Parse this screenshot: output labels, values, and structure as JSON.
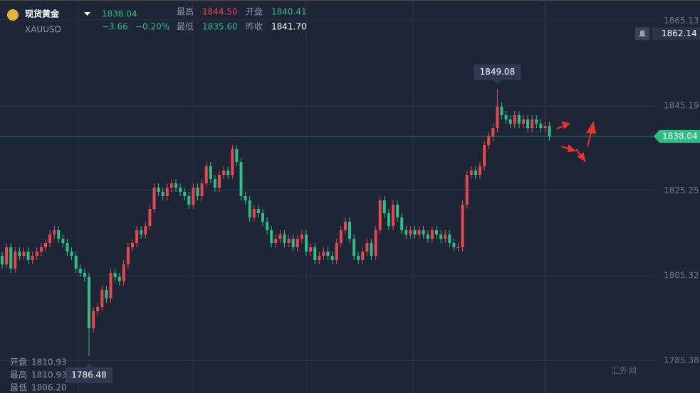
{
  "header": {
    "name": "现货黄金",
    "symbol": "XAUUSD",
    "price": "1838.04",
    "change": "−3.66",
    "change_pct": "−0.20%",
    "stats": [
      {
        "label": "最高",
        "value": "1844.50"
      },
      {
        "label": "开盘",
        "value": "1840.41"
      },
      {
        "label": "最低",
        "value": "1835.60"
      },
      {
        "label": "昨收",
        "value": "1841.70"
      }
    ]
  },
  "crosshair_info": [
    {
      "label": "开盘",
      "value": "1810.93"
    },
    {
      "label": "最高",
      "value": "1810.93"
    },
    {
      "label": "最低",
      "value": "1806.20"
    }
  ],
  "watermark": "汇外网",
  "chart_data": {
    "type": "candlestick",
    "up_color": "#e5484d",
    "down_color": "#2dbd85",
    "ylim": [
      1777.8,
      1870.04
    ],
    "yticks": [
      1785.38,
      1805.32,
      1825.25,
      1845.19,
      1865.13
    ],
    "grid": true,
    "alert_price": 1862.14,
    "open": [
      1810,
      1808,
      1812,
      1807,
      1811,
      1810,
      1811,
      1809,
      1810,
      1811,
      1812,
      1813,
      1815,
      1816,
      1814,
      1813,
      1811,
      1810,
      1807,
      1806,
      1805,
      1793,
      1797,
      1798,
      1802,
      1800,
      1806,
      1805,
      1804,
      1808,
      1812,
      1813,
      1816,
      1815,
      1817,
      1821,
      1826,
      1825,
      1824,
      1826,
      1827,
      1826,
      1825,
      1824,
      1822,
      1826,
      1824,
      1827,
      1831,
      1828,
      1826,
      1829,
      1830,
      1829,
      1835,
      1832,
      1824,
      1823,
      1819,
      1821,
      1820,
      1818,
      1816,
      1813,
      1814,
      1815,
      1813,
      1814,
      1812,
      1814,
      1815,
      1811,
      1812,
      1809,
      1810,
      1811,
      1810,
      1809,
      1813,
      1816,
      1818,
      1814,
      1810,
      1809,
      1811,
      1813,
      1810,
      1816,
      1823,
      1820,
      1817,
      1822,
      1819,
      1816,
      1815,
      1816,
      1815,
      1816,
      1815,
      1814,
      1816,
      1815,
      1814,
      1815,
      1813,
      1812,
      1812,
      1822,
      1829,
      1830,
      1829,
      1831,
      1836,
      1838,
      1840,
      1845,
      1843,
      1842,
      1841,
      1843,
      1841,
      1842,
      1840,
      1842,
      1841,
      1840,
      1840.5
    ],
    "high": [
      1811,
      1813,
      1813,
      1812,
      1812,
      1812,
      1812,
      1811,
      1812,
      1813,
      1814,
      1816,
      1817,
      1817,
      1815,
      1814,
      1812,
      1811,
      1808,
      1807,
      1806,
      1798,
      1799,
      1803,
      1803,
      1807,
      1807,
      1806,
      1809,
      1813,
      1814,
      1817,
      1817,
      1818,
      1822,
      1827,
      1827,
      1826,
      1827,
      1828,
      1828,
      1827,
      1826,
      1825,
      1827,
      1827,
      1828,
      1832,
      1832,
      1829,
      1830,
      1831,
      1831,
      1836,
      1836,
      1833,
      1825,
      1824,
      1822,
      1822,
      1821,
      1819,
      1817,
      1815,
      1816,
      1816,
      1815,
      1815,
      1815,
      1816,
      1816,
      1813,
      1813,
      1811,
      1812,
      1812,
      1811,
      1814,
      1817,
      1819,
      1819,
      1815,
      1811,
      1812,
      1814,
      1814,
      1817,
      1824,
      1824,
      1821,
      1823,
      1823,
      1820,
      1817,
      1817,
      1817,
      1817,
      1817,
      1816,
      1817,
      1817,
      1816,
      1816,
      1816,
      1814,
      1813,
      1823,
      1830,
      1831,
      1831,
      1832,
      1837,
      1839,
      1841,
      1849.08,
      1846,
      1844,
      1843,
      1844,
      1844,
      1843,
      1843,
      1843,
      1843,
      1842,
      1841.5,
      1841.5
    ],
    "low": [
      1807,
      1807,
      1806,
      1806,
      1809,
      1809,
      1808,
      1808,
      1809,
      1810,
      1811,
      1812,
      1814,
      1813,
      1812,
      1810,
      1809,
      1806,
      1805,
      1804,
      1786.48,
      1792,
      1796,
      1797,
      1799,
      1799,
      1804,
      1803,
      1803,
      1807,
      1811,
      1812,
      1814,
      1814,
      1816,
      1820,
      1824,
      1823,
      1823,
      1825,
      1825,
      1824,
      1823,
      1821,
      1821,
      1823,
      1823,
      1826,
      1827,
      1825,
      1825,
      1828,
      1828,
      1828,
      1831,
      1823,
      1822,
      1818,
      1818,
      1819,
      1817,
      1815,
      1812,
      1812,
      1813,
      1812,
      1812,
      1811,
      1811,
      1813,
      1810,
      1810,
      1808,
      1808,
      1809,
      1809,
      1808,
      1808,
      1812,
      1815,
      1813,
      1809,
      1808,
      1808,
      1810,
      1809,
      1809,
      1815,
      1819,
      1816,
      1816,
      1818,
      1815,
      1814,
      1814,
      1814,
      1814,
      1814,
      1813,
      1813,
      1814,
      1813,
      1813,
      1812,
      1811,
      1811,
      1811,
      1821,
      1828,
      1828,
      1828,
      1830,
      1835,
      1837,
      1839,
      1842,
      1841,
      1840,
      1840,
      1840,
      1840,
      1839,
      1839,
      1840,
      1839,
      1839,
      1837.04
    ],
    "close": [
      1808,
      1812,
      1807,
      1811,
      1810,
      1811,
      1809,
      1810,
      1811,
      1812,
      1813,
      1815,
      1816,
      1814,
      1813,
      1811,
      1810,
      1807,
      1806,
      1805,
      1793,
      1797,
      1798,
      1802,
      1800,
      1806,
      1805,
      1804,
      1808,
      1812,
      1813,
      1816,
      1815,
      1817,
      1821,
      1826,
      1825,
      1824,
      1826,
      1827,
      1826,
      1825,
      1824,
      1822,
      1826,
      1824,
      1827,
      1831,
      1828,
      1826,
      1829,
      1830,
      1829,
      1835,
      1832,
      1824,
      1823,
      1819,
      1821,
      1820,
      1818,
      1816,
      1813,
      1814,
      1815,
      1813,
      1814,
      1812,
      1814,
      1815,
      1811,
      1812,
      1809,
      1810,
      1811,
      1810,
      1809,
      1813,
      1816,
      1818,
      1814,
      1810,
      1809,
      1811,
      1813,
      1810,
      1816,
      1823,
      1820,
      1817,
      1822,
      1819,
      1816,
      1815,
      1816,
      1815,
      1816,
      1815,
      1814,
      1816,
      1815,
      1814,
      1815,
      1813,
      1812,
      1812,
      1822,
      1829,
      1830,
      1829,
      1831,
      1836,
      1838,
      1840,
      1845,
      1843,
      1842,
      1841,
      1843,
      1841,
      1842,
      1840,
      1842,
      1841,
      1840,
      1840.5,
      1838.04
    ]
  }
}
